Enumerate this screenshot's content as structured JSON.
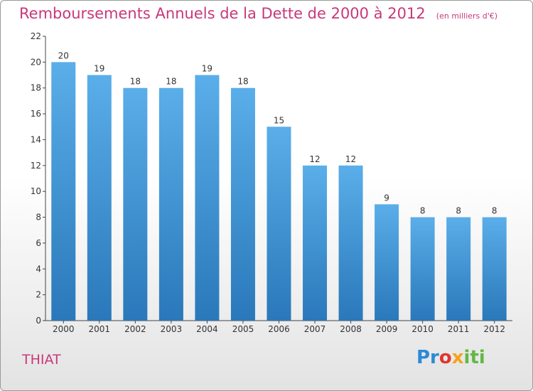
{
  "title": "Remboursements Annuels de la Dette de 2000 à 2012",
  "unit": "(en milliers d'€)",
  "commune": "THIAT",
  "logo": {
    "text": "Proxiti",
    "parts": [
      "Pr",
      "o",
      "x",
      "iti"
    ]
  },
  "colors": {
    "title": "#c8387a",
    "bar_top": "#5aaee9",
    "bar_bottom": "#2a78ba",
    "axis": "#444444"
  },
  "chart_data": {
    "type": "bar",
    "categories": [
      "2000",
      "2001",
      "2002",
      "2003",
      "2004",
      "2005",
      "2006",
      "2007",
      "2008",
      "2009",
      "2010",
      "2011",
      "2012"
    ],
    "values": [
      20,
      19,
      18,
      18,
      19,
      18,
      15,
      12,
      12,
      9,
      8,
      8,
      8
    ],
    "data_labels": [
      "20",
      "19",
      "18",
      "18",
      "19",
      "18",
      "15",
      "12",
      "12",
      "9",
      "8",
      "8",
      "8"
    ],
    "yticks": [
      0,
      2,
      4,
      6,
      8,
      10,
      12,
      14,
      16,
      18,
      20,
      22
    ],
    "ylim": [
      0,
      22
    ],
    "grid": false,
    "legend": "none"
  }
}
